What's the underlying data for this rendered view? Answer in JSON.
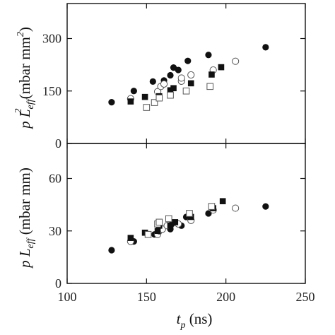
{
  "chart_data": [
    {
      "type": "scatter",
      "panel": "top",
      "xlim": [
        100,
        250
      ],
      "ylim": [
        0,
        400
      ],
      "yticks": [
        0,
        150,
        300
      ],
      "ylabel": {
        "main": "p L",
        "sub": "eff",
        "sup": "2",
        "unit": " (mbar mm",
        "unit_sup": "2",
        "unit_close": ")"
      },
      "series": [
        {
          "marker": "filled-circle",
          "points": [
            [
              128,
              118
            ],
            [
              142,
              150
            ],
            [
              154,
              177
            ],
            [
              161,
              180
            ],
            [
              165,
              195
            ],
            [
              167,
              217
            ],
            [
              170,
              210
            ],
            [
              176,
              236
            ],
            [
              189,
              253
            ],
            [
              225,
              275
            ]
          ]
        },
        {
          "marker": "open-circle",
          "points": [
            [
              140,
              128
            ],
            [
              157,
              148
            ],
            [
              159,
              163
            ],
            [
              161,
              170
            ],
            [
              172,
              178
            ],
            [
              172,
              187
            ],
            [
              178,
              196
            ],
            [
              192,
              210
            ],
            [
              206,
              235
            ]
          ]
        },
        {
          "marker": "filled-square",
          "points": [
            [
              140,
              120
            ],
            [
              149,
              133
            ],
            [
              158,
              135
            ],
            [
              165,
              152
            ],
            [
              167,
              158
            ],
            [
              178,
              172
            ],
            [
              191,
              197
            ],
            [
              197,
              218
            ]
          ]
        },
        {
          "marker": "open-square",
          "points": [
            [
              150,
              103
            ],
            [
              155,
              117
            ],
            [
              158,
              130
            ],
            [
              165,
              138
            ],
            [
              175,
              150
            ],
            [
              190,
              163
            ]
          ]
        }
      ]
    },
    {
      "type": "scatter",
      "panel": "bottom",
      "xlim": [
        100,
        250
      ],
      "ylim": [
        0,
        80
      ],
      "xticks": [
        100,
        150,
        200,
        250
      ],
      "yticks": [
        0,
        30,
        60
      ],
      "xlabel": {
        "main": "t",
        "sub": "p",
        "unit": " (ns)"
      },
      "ylabel": {
        "main": "p L",
        "sub": "eff",
        "unit": " (mbar mm)"
      },
      "series": [
        {
          "marker": "filled-circle",
          "points": [
            [
              128,
              19
            ],
            [
              142,
              24
            ],
            [
              155,
              28
            ],
            [
              158,
              30
            ],
            [
              165,
              31
            ],
            [
              166,
              34
            ],
            [
              172,
              33
            ],
            [
              175,
              38
            ],
            [
              189,
              40
            ],
            [
              225,
              44
            ]
          ]
        },
        {
          "marker": "open-circle",
          "points": [
            [
              140,
              24
            ],
            [
              157,
              28
            ],
            [
              158,
              30
            ],
            [
              160,
              31
            ],
            [
              163,
              33
            ],
            [
              170,
              34
            ],
            [
              178,
              36
            ],
            [
              192,
              42
            ],
            [
              206,
              43
            ]
          ]
        },
        {
          "marker": "filled-square",
          "points": [
            [
              140,
              26
            ],
            [
              149,
              29
            ],
            [
              157,
              30
            ],
            [
              158,
              33
            ],
            [
              165,
              33
            ],
            [
              168,
              35
            ],
            [
              178,
              38
            ],
            [
              192,
              43
            ],
            [
              198,
              47
            ]
          ]
        },
        {
          "marker": "open-square",
          "points": [
            [
              151,
              28
            ],
            [
              157,
              34
            ],
            [
              158,
              35
            ],
            [
              164,
              37
            ],
            [
              177,
              40
            ],
            [
              191,
              44
            ]
          ]
        }
      ]
    }
  ]
}
